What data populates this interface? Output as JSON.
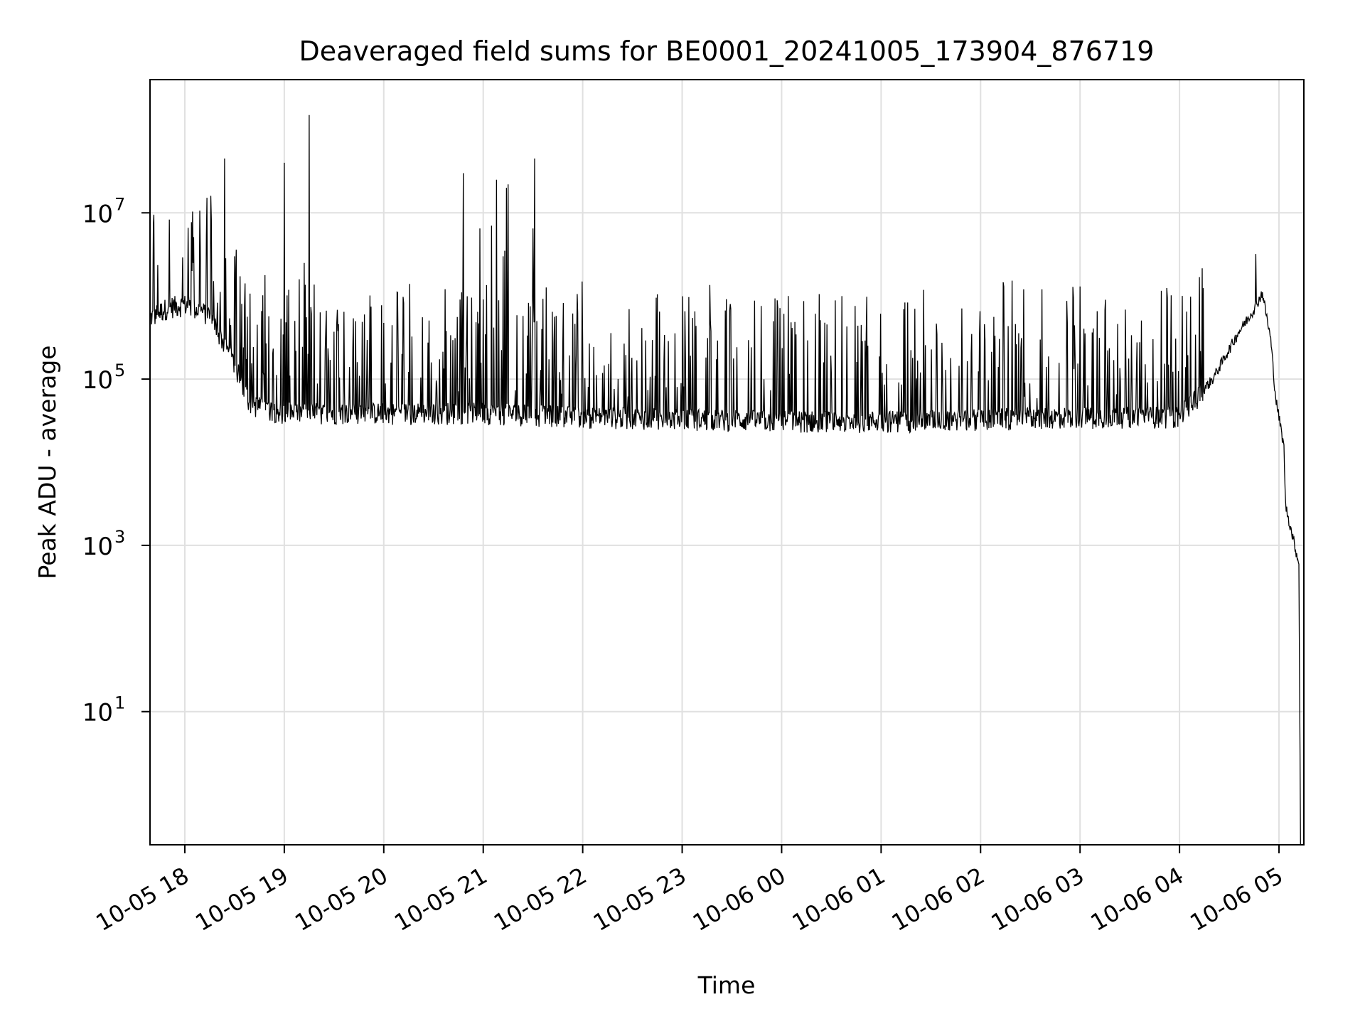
{
  "chart_data": {
    "type": "line",
    "title": "Deaveraged field sums for BE0001_20241005_173904_876719",
    "xlabel": "Time",
    "ylabel": "Peak ADU - average",
    "y_scale": "log",
    "grid": true,
    "x_tick_labels": [
      "10-05 18",
      "10-05 19",
      "10-05 20",
      "10-05 21",
      "10-05 22",
      "10-05 23",
      "10-06 00",
      "10-06 01",
      "10-06 02",
      "10-06 03",
      "10-06 04",
      "10-06 05"
    ],
    "x_tick_times": [
      "2024-10-05T18:00",
      "2024-10-05T19:00",
      "2024-10-05T20:00",
      "2024-10-05T21:00",
      "2024-10-05T22:00",
      "2024-10-05T23:00",
      "2024-10-06T00:00",
      "2024-10-06T01:00",
      "2024-10-06T02:00",
      "2024-10-06T03:00",
      "2024-10-06T04:00",
      "2024-10-06T05:00"
    ],
    "y_tick_labels": [
      {
        "base": "10",
        "exp": "7",
        "value": 10000000
      },
      {
        "base": "10",
        "exp": "5",
        "value": 100000
      },
      {
        "base": "10",
        "exp": "3",
        "value": 1000
      },
      {
        "base": "10",
        "exp": "1",
        "value": 10
      }
    ],
    "xlim": [
      "2024-10-05T17:39",
      "2024-10-06T05:15"
    ],
    "ylim": [
      0.25,
      400000000
    ],
    "series": [
      {
        "color": "#000000",
        "baseline": [
          [
            "2024-10-05T17:39",
            550000
          ],
          [
            "2024-10-05T17:50",
            750000
          ],
          [
            "2024-10-05T18:00",
            800000
          ],
          [
            "2024-10-05T18:15",
            600000
          ],
          [
            "2024-10-05T18:30",
            150000
          ],
          [
            "2024-10-05T18:40",
            50000
          ],
          [
            "2024-10-05T19:00",
            40000
          ],
          [
            "2024-10-05T20:00",
            40000
          ],
          [
            "2024-10-05T21:00",
            40000
          ],
          [
            "2024-10-05T22:00",
            36000
          ],
          [
            "2024-10-05T23:00",
            34000
          ],
          [
            "2024-10-06T00:00",
            32000
          ],
          [
            "2024-10-06T01:00",
            32000
          ],
          [
            "2024-10-06T02:00",
            34000
          ],
          [
            "2024-10-06T03:00",
            36000
          ],
          [
            "2024-10-06T04:00",
            36000
          ],
          [
            "2024-10-06T04:20",
            100000
          ],
          [
            "2024-10-06T04:35",
            350000
          ],
          [
            "2024-10-06T04:45",
            700000
          ],
          [
            "2024-10-06T04:50",
            1100000
          ],
          [
            "2024-10-06T04:55",
            300000
          ],
          [
            "2024-10-06T04:58",
            60000
          ],
          [
            "2024-10-06T05:00",
            35000
          ],
          [
            "2024-10-06T05:03",
            15000
          ],
          [
            "2024-10-06T05:04",
            3000
          ],
          [
            "2024-10-06T05:12",
            600
          ],
          [
            "2024-10-06T05:13",
            0.25
          ]
        ],
        "peaks": [
          [
            "2024-10-05T18:05",
            2500000
          ],
          [
            "2024-10-05T18:24",
            45000000
          ],
          [
            "2024-10-05T18:30",
            3000000
          ],
          [
            "2024-10-05T19:00",
            40000000
          ],
          [
            "2024-10-05T19:12",
            2500000
          ],
          [
            "2024-10-05T19:15",
            150000000
          ],
          [
            "2024-10-05T20:48",
            30000000
          ],
          [
            "2024-10-05T20:58",
            6500000
          ],
          [
            "2024-10-05T21:05",
            7000000
          ],
          [
            "2024-10-05T21:08",
            25000000
          ],
          [
            "2024-10-05T21:12",
            3000000
          ],
          [
            "2024-10-05T21:13",
            3500000
          ],
          [
            "2024-10-05T21:14",
            20000000
          ],
          [
            "2024-10-05T21:15",
            22000000
          ],
          [
            "2024-10-05T21:30",
            6500000
          ],
          [
            "2024-10-05T21:31",
            45000000
          ],
          [
            "2024-10-06T02:14",
            1300000
          ],
          [
            "2024-10-06T02:26",
            1200000
          ],
          [
            "2024-10-06T02:37",
            1200000
          ],
          [
            "2024-10-06T03:00",
            1300000
          ],
          [
            "2024-10-06T04:46",
            3200000
          ]
        ]
      }
    ]
  }
}
